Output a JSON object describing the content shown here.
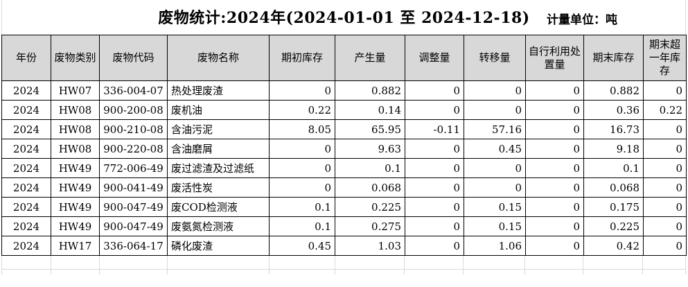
{
  "title": "废物统计:2024年(2024-01-01 至 2024-12-18)",
  "unit_label": "计量单位：吨",
  "colors": {
    "header_bg": "#d8d8d8",
    "table_border": "#000000",
    "ghost_grid_line": "#d9d9d9",
    "text": "#000000"
  },
  "table": {
    "columns": [
      {
        "label": "年份",
        "align": "center"
      },
      {
        "label": "废物类别",
        "align": "center"
      },
      {
        "label": "废物代码",
        "align": "center"
      },
      {
        "label": "废物名称",
        "align": "left"
      },
      {
        "label": "期初库存",
        "align": "right"
      },
      {
        "label": "产生量",
        "align": "right"
      },
      {
        "label": "调整量",
        "align": "right"
      },
      {
        "label": "转移量",
        "align": "right"
      },
      {
        "label": "自行利用处置量",
        "align": "right"
      },
      {
        "label": "期末库存",
        "align": "right"
      },
      {
        "label": "期末超一年库存",
        "align": "right"
      }
    ],
    "rows": [
      [
        "2024",
        "HW07",
        "336-004-07",
        "热处理废渣",
        "0",
        "0.882",
        "0",
        "0",
        "0",
        "0.882",
        "0"
      ],
      [
        "2024",
        "HW08",
        "900-200-08",
        "废机油",
        "0.22",
        "0.14",
        "0",
        "0",
        "0",
        "0.36",
        "0.22"
      ],
      [
        "2024",
        "HW08",
        "900-210-08",
        "含油污泥",
        "8.05",
        "65.95",
        "-0.11",
        "57.16",
        "0",
        "16.73",
        "0"
      ],
      [
        "2024",
        "HW08",
        "900-220-08",
        "含油磨屑",
        "0",
        "9.63",
        "0",
        "0.45",
        "0",
        "9.18",
        "0"
      ],
      [
        "2024",
        "HW49",
        "772-006-49",
        "废过滤渣及过滤纸",
        "0",
        "0.1",
        "0",
        "0",
        "0",
        "0.1",
        "0"
      ],
      [
        "2024",
        "HW49",
        "900-041-49",
        "废活性炭",
        "0",
        "0.068",
        "0",
        "0",
        "0",
        "0.068",
        "0"
      ],
      [
        "2024",
        "HW49",
        "900-047-49",
        "废COD检测液",
        "0.1",
        "0.225",
        "0",
        "0.15",
        "0",
        "0.175",
        "0"
      ],
      [
        "2024",
        "HW49",
        "900-047-49",
        "废氨氮检测液",
        "0.1",
        "0.275",
        "0",
        "0.15",
        "0",
        "0.225",
        "0"
      ],
      [
        "2024",
        "HW17",
        "336-064-17",
        "磷化废渣",
        "0.45",
        "1.03",
        "0",
        "1.06",
        "0",
        "0.42",
        "0"
      ]
    ]
  }
}
